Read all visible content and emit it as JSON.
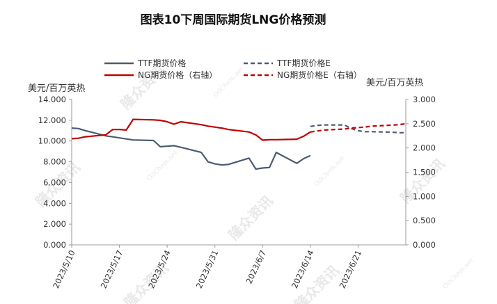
{
  "chart_data": {
    "type": "line",
    "title": "图表10下周国际期货LNG价格预测",
    "ylabel_left": "美元/百万英热",
    "ylabel_right": "美元/百万英热",
    "ylim_left": [
      0,
      14
    ],
    "ylim_right": [
      0,
      3
    ],
    "yticks_left": [
      "0.000",
      "2.000",
      "4.000",
      "6.000",
      "8.000",
      "10.000",
      "12.000",
      "14.000"
    ],
    "yticks_right": [
      "0.000",
      "0.500",
      "1.000",
      "1.500",
      "2.000",
      "2.500",
      "3.000"
    ],
    "xticks": [
      "2023/5/10",
      "2023/5/17",
      "2023/5/24",
      "2023/5/31",
      "2023/6/7",
      "2023/6/14",
      "2023/6/21"
    ],
    "xlim": [
      "2023/5/10",
      "2023/6/28"
    ],
    "legend_position": "top",
    "grid": false,
    "watermark": "隆众资讯",
    "watermark_small": "OilChem.net",
    "series": [
      {
        "name": "TTF期货价格",
        "axis": "left",
        "color": "#4a5b73",
        "style": "solid",
        "x": [
          "2023/5/10",
          "2023/5/11",
          "2023/5/12",
          "2023/5/15",
          "2023/5/16",
          "2023/5/17",
          "2023/5/18",
          "2023/5/19",
          "2023/5/22",
          "2023/5/23",
          "2023/5/24",
          "2023/5/25",
          "2023/5/26",
          "2023/5/29",
          "2023/5/30",
          "2023/5/31",
          "2023/6/1",
          "2023/6/2",
          "2023/6/5",
          "2023/6/6",
          "2023/6/7",
          "2023/6/8",
          "2023/6/9",
          "2023/6/12",
          "2023/6/13",
          "2023/6/14"
        ],
        "values": [
          11.25,
          11.2,
          11.0,
          10.5,
          10.4,
          10.3,
          10.2,
          10.1,
          10.05,
          9.45,
          9.5,
          9.55,
          9.4,
          8.9,
          8.0,
          7.8,
          7.7,
          7.75,
          8.35,
          7.3,
          7.4,
          7.45,
          8.9,
          7.85,
          8.3,
          8.6
        ]
      },
      {
        "name": "TTF期货价格E",
        "axis": "left",
        "color": "#4a5b73",
        "style": "dashed",
        "x": [
          "2023/6/14",
          "2023/6/15",
          "2023/6/16",
          "2023/6/19",
          "2023/6/20",
          "2023/6/21",
          "2023/6/22",
          "2023/6/23",
          "2023/6/26",
          "2023/6/27",
          "2023/6/28"
        ],
        "values": [
          11.4,
          11.5,
          11.55,
          11.55,
          11.2,
          11.0,
          10.9,
          10.9,
          10.85,
          10.8,
          10.8
        ]
      },
      {
        "name": "NG期货价格（右轴）",
        "axis": "right",
        "color": "#c00000",
        "style": "solid",
        "x": [
          "2023/5/10",
          "2023/5/11",
          "2023/5/12",
          "2023/5/15",
          "2023/5/16",
          "2023/5/17",
          "2023/5/18",
          "2023/5/19",
          "2023/5/22",
          "2023/5/23",
          "2023/5/24",
          "2023/5/25",
          "2023/5/26",
          "2023/5/29",
          "2023/5/30",
          "2023/5/31",
          "2023/6/1",
          "2023/6/2",
          "2023/6/5",
          "2023/6/6",
          "2023/6/7",
          "2023/6/8",
          "2023/6/9",
          "2023/6/12",
          "2023/6/13",
          "2023/6/14"
        ],
        "values": [
          2.19,
          2.2,
          2.23,
          2.27,
          2.38,
          2.38,
          2.37,
          2.59,
          2.58,
          2.57,
          2.54,
          2.49,
          2.54,
          2.48,
          2.45,
          2.43,
          2.41,
          2.38,
          2.33,
          2.27,
          2.16,
          2.17,
          2.17,
          2.18,
          2.24,
          2.33
        ]
      },
      {
        "name": "NG期货价格E（右轴）",
        "axis": "right",
        "color": "#c00000",
        "style": "dashed",
        "x": [
          "2023/6/14",
          "2023/6/15",
          "2023/6/16",
          "2023/6/19",
          "2023/6/20",
          "2023/6/21",
          "2023/6/22",
          "2023/6/23",
          "2023/6/26",
          "2023/6/27",
          "2023/6/28"
        ],
        "values": [
          2.33,
          2.35,
          2.37,
          2.39,
          2.41,
          2.42,
          2.43,
          2.45,
          2.47,
          2.48,
          2.5
        ]
      }
    ]
  }
}
